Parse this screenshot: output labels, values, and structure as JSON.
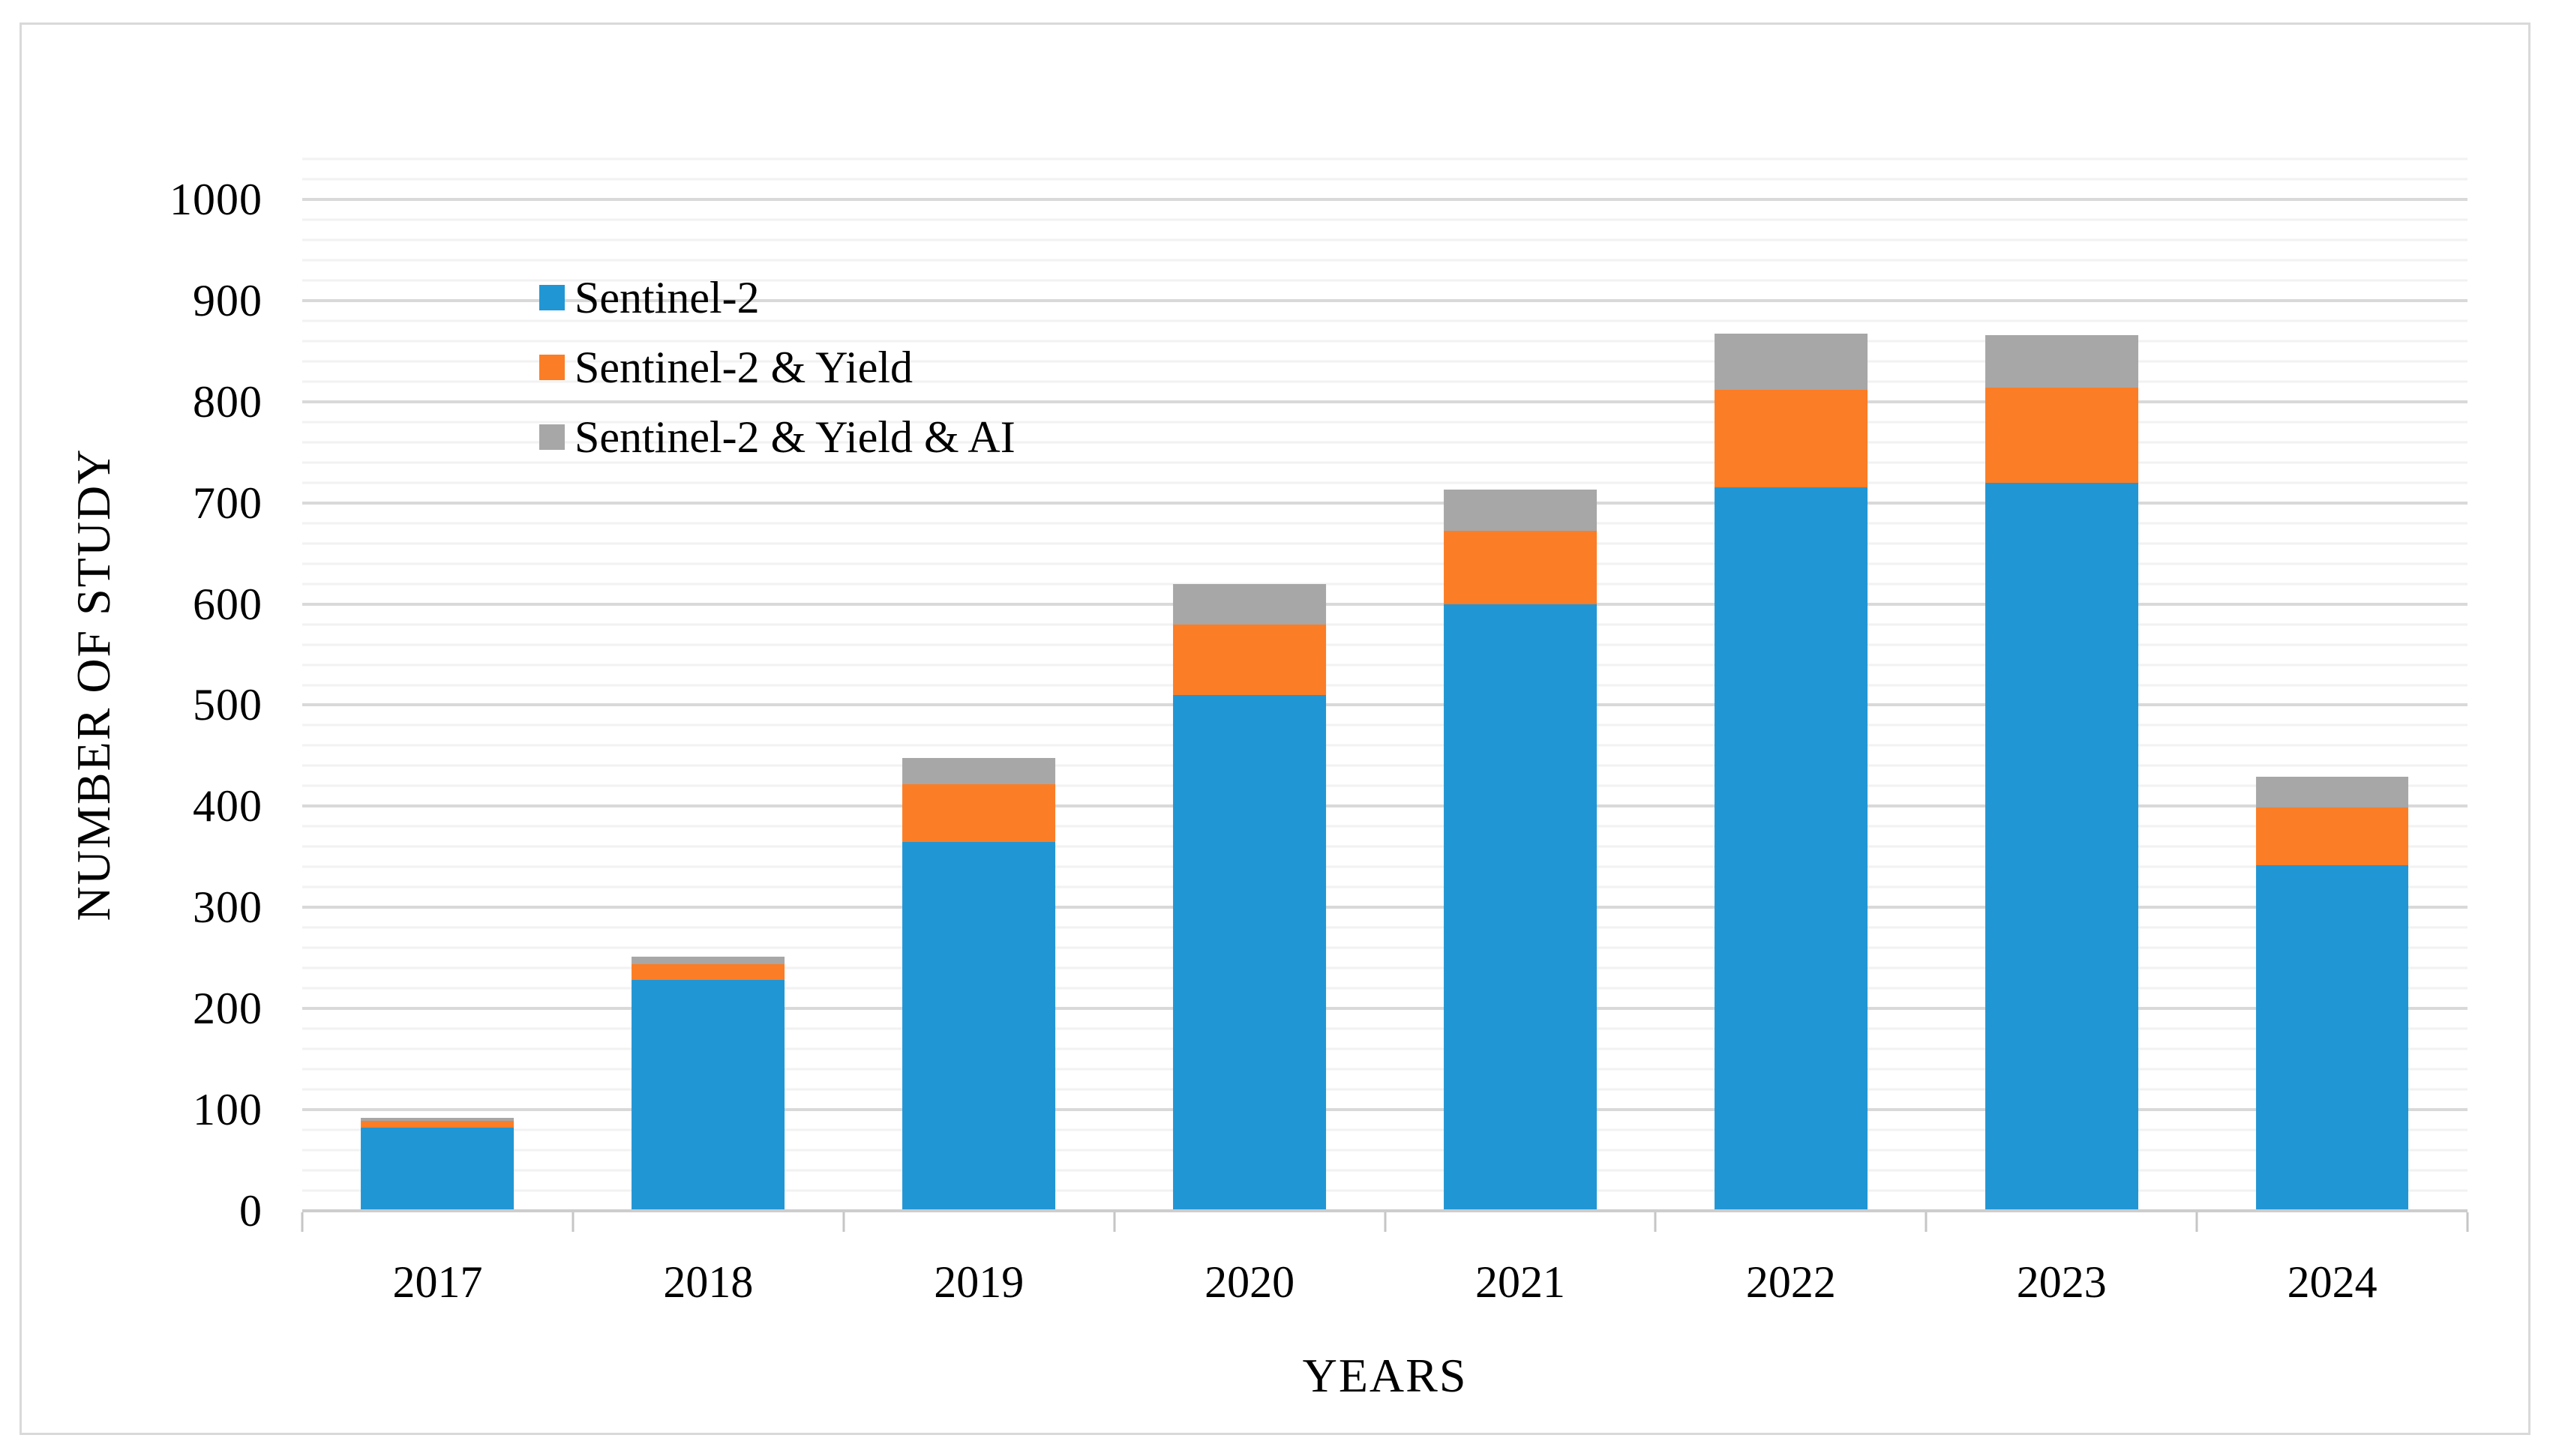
{
  "chart_data": {
    "type": "bar",
    "stacked": true,
    "title": "",
    "xlabel": "YEARS",
    "ylabel": "NUMBER OF STUDY",
    "categories": [
      "2017",
      "2018",
      "2019",
      "2020",
      "2021",
      "2022",
      "2023",
      "2024"
    ],
    "series": [
      {
        "name": "Sentinel-2",
        "color": "#2196D4",
        "values": [
          82,
          228,
          365,
          510,
          600,
          715,
          720,
          342
        ]
      },
      {
        "name": "Sentinel-2 & Yield",
        "color": "#FB7D26",
        "values": [
          7,
          16,
          57,
          70,
          72,
          97,
          94,
          57
        ]
      },
      {
        "name": "Sentinel-2 & Yield & AI",
        "color": "#A7A7A7",
        "values": [
          3,
          7,
          26,
          40,
          41,
          55,
          52,
          30
        ]
      }
    ],
    "ylim": [
      0,
      1040
    ],
    "y_major_step": 100,
    "y_minor_step": 20,
    "y_tick_labels": [
      "0",
      "100",
      "200",
      "300",
      "400",
      "500",
      "600",
      "700",
      "800",
      "900",
      "1000"
    ],
    "legend_position": "inside-top-left",
    "grid": "horizontal-minor-and-major",
    "bar_width_ratio": 0.565,
    "styles": {
      "minor_gridline_color": "#F2F2F2",
      "major_gridline_color": "#D9D9D9",
      "axis_line_color": "#CDCDCD",
      "frame_border_color": "#D9D9D9",
      "text_color": "#000000",
      "background_color": "#FFFFFF"
    }
  }
}
